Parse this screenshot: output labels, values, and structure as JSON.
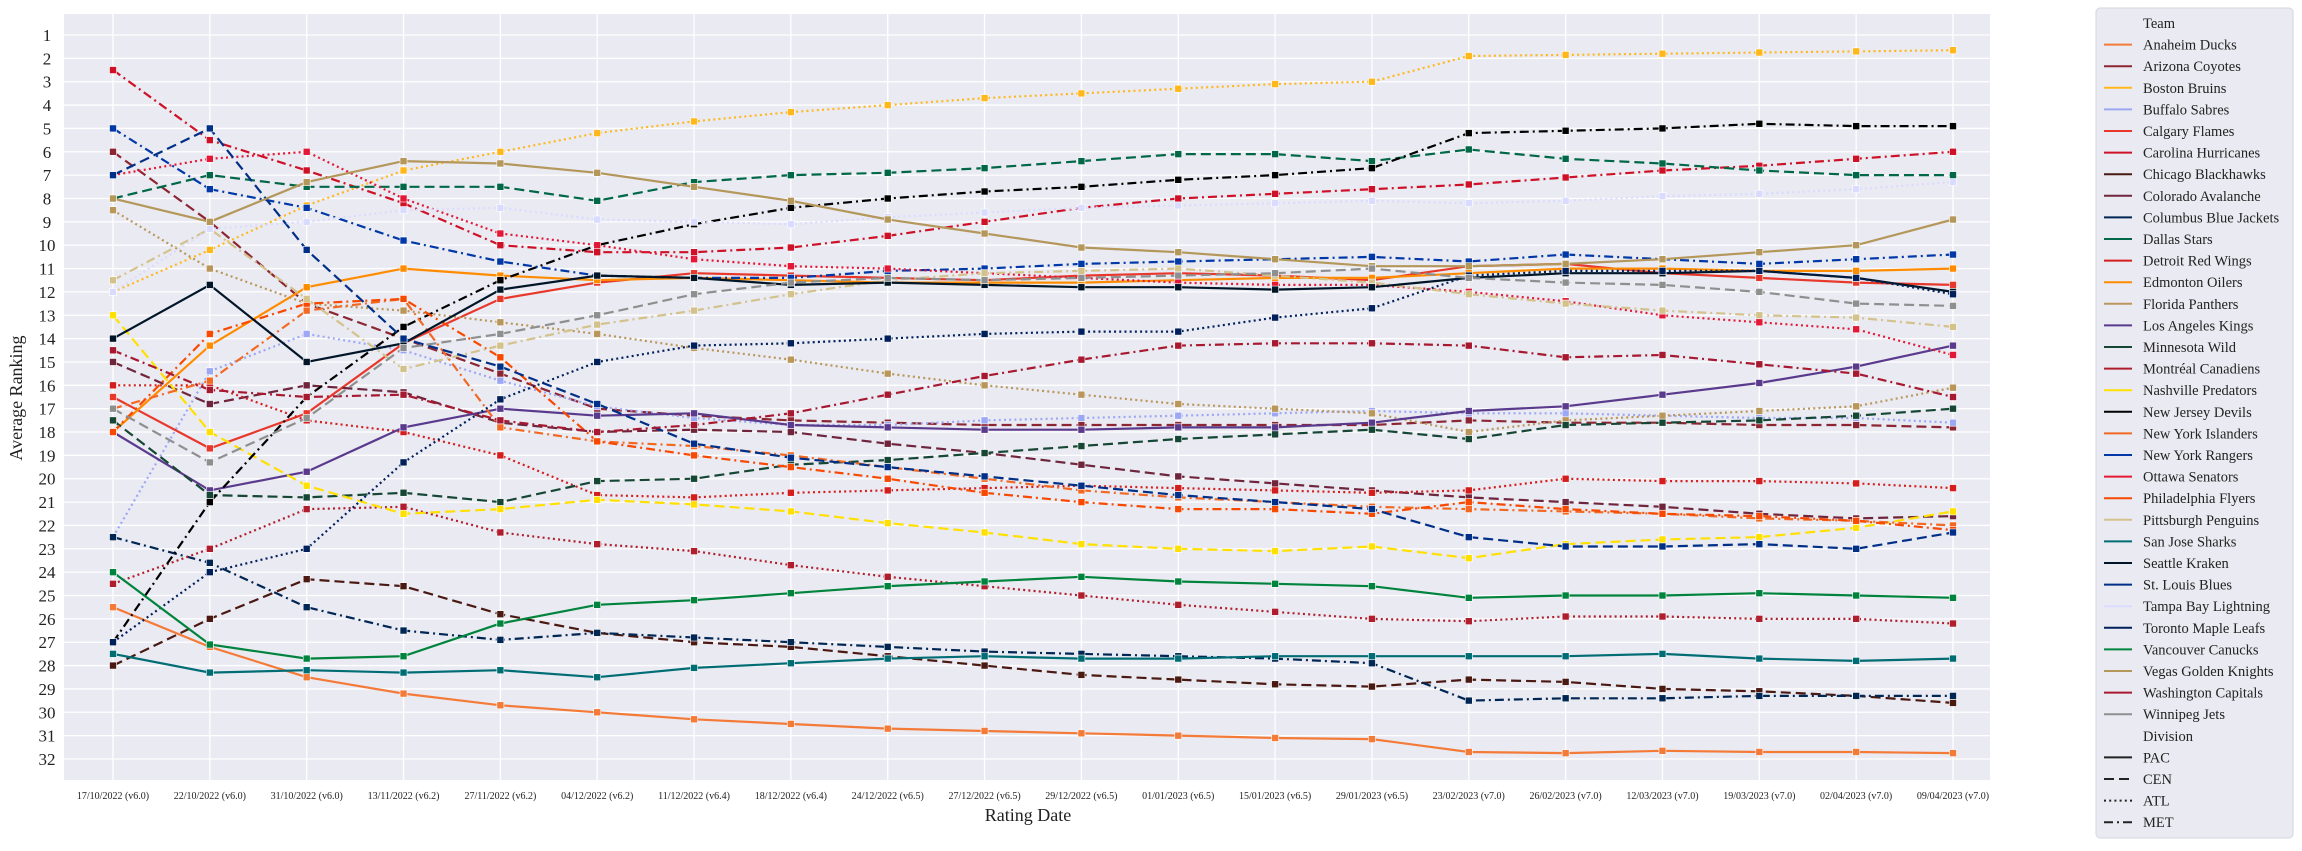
{
  "chart_data": {
    "type": "line",
    "title": "",
    "xlabel": "Rating Date",
    "ylabel": "Average Ranking",
    "x": [
      "17/10/2022 (v6.0)",
      "22/10/2022 (v6.0)",
      "31/10/2022 (v6.0)",
      "13/11/2022 (v6.2)",
      "27/11/2022 (v6.2)",
      "04/12/2022 (v6.2)",
      "11/12/2022 (v6.4)",
      "18/12/2022 (v6.4)",
      "24/12/2022 (v6.5)",
      "27/12/2022 (v6.5)",
      "29/12/2022 (v6.5)",
      "01/01/2023 (v6.5)",
      "15/01/2023 (v6.5)",
      "29/01/2023 (v6.5)",
      "23/02/2023 (v7.0)",
      "26/02/2023 (v7.0)",
      "12/03/2023 (v7.0)",
      "19/03/2023 (v7.0)",
      "02/04/2023 (v7.0)",
      "09/04/2023 (v7.0)"
    ],
    "yticks": [
      1,
      2,
      3,
      4,
      5,
      6,
      7,
      8,
      9,
      10,
      11,
      12,
      13,
      14,
      15,
      16,
      17,
      18,
      19,
      20,
      21,
      22,
      23,
      24,
      25,
      26,
      27,
      28,
      29,
      30,
      31,
      32
    ],
    "ylim": [
      32.9,
      0.1
    ],
    "y_inverted": true,
    "grid": true,
    "legend_placement": "outside-right",
    "legend_title_team": "Team",
    "legend_title_division": "Division",
    "divisions": [
      {
        "name": "PAC",
        "dash": "solid"
      },
      {
        "name": "CEN",
        "dash": "dashed"
      },
      {
        "name": "ATL",
        "dash": "dotted"
      },
      {
        "name": "MET",
        "dash": "dashdot"
      }
    ],
    "series": [
      {
        "name": "Anaheim Ducks",
        "color": "#F47A38",
        "division": "PAC",
        "values": [
          25.5,
          27.2,
          28.5,
          29.2,
          29.7,
          30.0,
          30.3,
          30.5,
          30.7,
          30.8,
          30.9,
          31.0,
          31.1,
          31.15,
          31.7,
          31.75,
          31.65,
          31.7,
          31.7,
          31.75
        ]
      },
      {
        "name": "Arizona Coyotes",
        "color": "#8C2633",
        "division": "CEN",
        "values": [
          6.0,
          9.0,
          12.5,
          14.0,
          15.5,
          17.0,
          17.3,
          17.5,
          17.6,
          17.7,
          17.7,
          17.7,
          17.7,
          17.7,
          17.5,
          17.6,
          17.6,
          17.7,
          17.7,
          17.8
        ]
      },
      {
        "name": "Boston Bruins",
        "color": "#FFB81C",
        "division": "ATL",
        "values": [
          12.0,
          10.2,
          8.3,
          6.8,
          6.0,
          5.2,
          4.7,
          4.3,
          4.0,
          3.7,
          3.5,
          3.3,
          3.1,
          3.0,
          1.9,
          1.85,
          1.8,
          1.75,
          1.7,
          1.65
        ]
      },
      {
        "name": "Buffalo Sabres",
        "color": "#9DA8F5",
        "division": "ATL",
        "values": [
          22.5,
          15.4,
          13.8,
          14.5,
          15.8,
          16.9,
          17.4,
          17.7,
          17.7,
          17.5,
          17.4,
          17.3,
          17.2,
          17.1,
          17.2,
          17.2,
          17.3,
          17.4,
          17.4,
          17.6
        ]
      },
      {
        "name": "Calgary Flames",
        "color": "#E8372B",
        "division": "PAC",
        "values": [
          16.5,
          18.7,
          17.2,
          14.2,
          12.3,
          11.6,
          11.2,
          11.3,
          11.4,
          11.5,
          11.3,
          11.2,
          11.3,
          11.5,
          10.9,
          10.8,
          11.2,
          11.4,
          11.6,
          11.7
        ]
      },
      {
        "name": "Carolina Hurricanes",
        "color": "#CE1126",
        "division": "MET",
        "values": [
          2.5,
          5.5,
          6.8,
          8.2,
          10.0,
          10.3,
          10.3,
          10.1,
          9.6,
          9.0,
          8.4,
          8.0,
          7.8,
          7.6,
          7.4,
          7.1,
          6.8,
          6.6,
          6.3,
          6.0
        ]
      },
      {
        "name": "Chicago Blackhawks",
        "color": "#4A1A12",
        "division": "CEN",
        "values": [
          28.0,
          26.0,
          24.3,
          24.6,
          25.8,
          26.6,
          27.0,
          27.2,
          27.6,
          28.0,
          28.4,
          28.6,
          28.8,
          28.9,
          28.6,
          28.7,
          29.0,
          29.1,
          29.3,
          29.6
        ]
      },
      {
        "name": "Colorado Avalanche",
        "color": "#6F263D",
        "division": "CEN",
        "values": [
          15.0,
          16.8,
          16.0,
          16.3,
          17.6,
          18.0,
          17.9,
          18.0,
          18.5,
          18.9,
          19.4,
          19.9,
          20.2,
          20.5,
          20.8,
          21.0,
          21.2,
          21.5,
          21.7,
          21.6
        ]
      },
      {
        "name": "Columbus Blue Jackets",
        "color": "#002654",
        "division": "MET",
        "values": [
          22.5,
          23.6,
          25.5,
          26.5,
          26.9,
          26.6,
          26.8,
          27.0,
          27.2,
          27.4,
          27.5,
          27.6,
          27.7,
          27.9,
          29.5,
          29.4,
          29.4,
          29.3,
          29.3,
          29.3
        ]
      },
      {
        "name": "Dallas Stars",
        "color": "#006847",
        "division": "CEN",
        "values": [
          8.0,
          7.0,
          7.5,
          7.5,
          7.5,
          8.1,
          7.3,
          7.0,
          6.9,
          6.7,
          6.4,
          6.1,
          6.1,
          6.4,
          5.9,
          6.3,
          6.5,
          6.8,
          7.0,
          7.0
        ]
      },
      {
        "name": "Detroit Red Wings",
        "color": "#D41E1E",
        "division": "ATL",
        "values": [
          16.0,
          16.0,
          17.5,
          18.0,
          19.0,
          20.7,
          20.8,
          20.6,
          20.5,
          20.4,
          20.3,
          20.4,
          20.5,
          20.6,
          20.5,
          20.0,
          20.1,
          20.1,
          20.2,
          20.4
        ]
      },
      {
        "name": "Edmonton Oilers",
        "color": "#FF8C00",
        "division": "PAC",
        "values": [
          18.0,
          14.3,
          11.8,
          11.0,
          11.3,
          11.5,
          11.4,
          11.5,
          11.6,
          11.6,
          11.6,
          11.5,
          11.4,
          11.4,
          11.2,
          11.0,
          11.0,
          11.1,
          11.1,
          11.0
        ]
      },
      {
        "name": "Florida Panthers",
        "color": "#B9975B",
        "division": "ATL",
        "values": [
          8.5,
          11.0,
          12.5,
          12.8,
          13.3,
          13.8,
          14.4,
          14.9,
          15.5,
          16.0,
          16.4,
          16.8,
          17.0,
          17.2,
          18.0,
          17.5,
          17.3,
          17.1,
          16.9,
          16.1
        ]
      },
      {
        "name": "Los Angeles Kings",
        "color": "#5A3A8C",
        "division": "PAC",
        "values": [
          18.0,
          20.5,
          19.7,
          17.8,
          17.0,
          17.3,
          17.2,
          17.7,
          17.8,
          17.9,
          17.9,
          17.8,
          17.8,
          17.6,
          17.1,
          16.9,
          16.4,
          15.9,
          15.2,
          14.3
        ]
      },
      {
        "name": "Minnesota Wild",
        "color": "#154734",
        "division": "CEN",
        "values": [
          17.5,
          20.7,
          20.8,
          20.6,
          21.0,
          20.1,
          20.0,
          19.4,
          19.2,
          18.9,
          18.6,
          18.3,
          18.1,
          17.9,
          18.3,
          17.7,
          17.6,
          17.5,
          17.3,
          17.0
        ]
      },
      {
        "name": "Montréal Canadiens",
        "color": "#AF1E2D",
        "division": "ATL",
        "values": [
          24.5,
          23.0,
          21.3,
          21.2,
          22.3,
          22.8,
          23.1,
          23.7,
          24.2,
          24.6,
          25.0,
          25.4,
          25.7,
          26.0,
          26.1,
          25.9,
          25.9,
          26.0,
          26.0,
          26.2
        ]
      },
      {
        "name": "Nashville Predators",
        "color": "#FFE000",
        "division": "CEN",
        "values": [
          13.0,
          18.0,
          20.3,
          21.5,
          21.3,
          20.9,
          21.1,
          21.4,
          21.9,
          22.3,
          22.8,
          23.0,
          23.1,
          22.9,
          23.4,
          22.8,
          22.6,
          22.5,
          22.1,
          21.4
        ]
      },
      {
        "name": "New Jersey Devils",
        "color": "#000000",
        "division": "MET",
        "values": [
          27.0,
          21.0,
          16.5,
          13.5,
          11.5,
          10.0,
          9.1,
          8.4,
          8.0,
          7.7,
          7.5,
          7.2,
          7.0,
          6.7,
          5.2,
          5.1,
          5.0,
          4.8,
          4.9,
          4.9
        ]
      },
      {
        "name": "New York Islanders",
        "color": "#F26924",
        "division": "MET",
        "values": [
          17.0,
          15.8,
          12.8,
          12.3,
          17.8,
          18.4,
          18.6,
          19.0,
          19.5,
          20.0,
          20.5,
          20.8,
          21.0,
          21.2,
          21.3,
          21.4,
          21.5,
          21.7,
          21.8,
          22.0
        ]
      },
      {
        "name": "New York Rangers",
        "color": "#0038A8",
        "division": "MET",
        "values": [
          5.0,
          7.6,
          8.4,
          9.8,
          10.7,
          11.3,
          11.4,
          11.4,
          11.1,
          11.0,
          10.8,
          10.7,
          10.6,
          10.5,
          10.7,
          10.4,
          10.6,
          10.8,
          10.6,
          10.4
        ]
      },
      {
        "name": "Ottawa Senators",
        "color": "#E31837",
        "division": "ATL",
        "values": [
          7.0,
          6.3,
          6.0,
          8.0,
          9.5,
          10.0,
          10.6,
          10.9,
          11.0,
          11.2,
          11.4,
          11.6,
          11.7,
          11.7,
          12.0,
          12.4,
          13.0,
          13.3,
          13.6,
          14.7
        ]
      },
      {
        "name": "Philadelphia Flyers",
        "color": "#F74902",
        "division": "MET",
        "values": [
          18.0,
          13.8,
          12.5,
          12.3,
          14.8,
          18.4,
          19.0,
          19.5,
          20.0,
          20.6,
          21.0,
          21.3,
          21.3,
          21.5,
          21.0,
          21.3,
          21.5,
          21.6,
          21.8,
          22.2
        ]
      },
      {
        "name": "Pittsburgh Penguins",
        "color": "#D3C28C",
        "division": "MET",
        "values": [
          11.5,
          9.3,
          12.3,
          15.3,
          14.3,
          13.4,
          12.8,
          12.1,
          11.5,
          11.2,
          11.1,
          11.0,
          11.3,
          11.6,
          12.1,
          12.5,
          12.8,
          13.0,
          13.1,
          13.5
        ]
      },
      {
        "name": "San Jose Sharks",
        "color": "#006D75",
        "division": "PAC",
        "values": [
          27.5,
          28.3,
          28.2,
          28.3,
          28.2,
          28.5,
          28.1,
          27.9,
          27.7,
          27.6,
          27.7,
          27.7,
          27.6,
          27.6,
          27.6,
          27.6,
          27.5,
          27.7,
          27.8,
          27.7
        ]
      },
      {
        "name": "Seattle Kraken",
        "color": "#001628",
        "division": "PAC",
        "values": [
          14.0,
          11.7,
          15.0,
          14.2,
          11.9,
          11.3,
          11.4,
          11.7,
          11.6,
          11.7,
          11.8,
          11.8,
          11.9,
          11.8,
          11.4,
          11.2,
          11.2,
          11.1,
          11.4,
          12.0
        ]
      },
      {
        "name": "St. Louis Blues",
        "color": "#002F87",
        "division": "CEN",
        "values": [
          7.0,
          5.0,
          10.2,
          14.0,
          15.2,
          16.8,
          18.5,
          19.1,
          19.5,
          19.9,
          20.3,
          20.7,
          21.0,
          21.3,
          22.5,
          22.9,
          22.9,
          22.8,
          23.0,
          22.3
        ]
      },
      {
        "name": "Tampa Bay Lightning",
        "color": "#D9DBFF",
        "division": "ATL",
        "values": [
          12.0,
          9.3,
          9.0,
          8.5,
          8.4,
          8.9,
          9.0,
          9.1,
          8.8,
          8.6,
          8.4,
          8.3,
          8.2,
          8.1,
          8.2,
          8.1,
          7.9,
          7.8,
          7.6,
          7.3
        ]
      },
      {
        "name": "Toronto Maple Leafs",
        "color": "#00205B",
        "division": "ATL",
        "values": [
          27.0,
          24.0,
          23.0,
          19.3,
          16.6,
          15.0,
          14.3,
          14.2,
          14.0,
          13.8,
          13.7,
          13.7,
          13.1,
          12.7,
          11.3,
          11.1,
          11.1,
          11.1,
          11.4,
          12.1
        ]
      },
      {
        "name": "Vancouver Canucks",
        "color": "#00843D",
        "division": "PAC",
        "values": [
          24.0,
          27.1,
          27.7,
          27.6,
          26.2,
          25.4,
          25.2,
          24.9,
          24.6,
          24.4,
          24.2,
          24.4,
          24.5,
          24.6,
          25.1,
          25.0,
          25.0,
          24.9,
          25.0,
          25.1
        ]
      },
      {
        "name": "Vegas Golden Knights",
        "color": "#B4975A",
        "division": "PAC",
        "values": [
          8.0,
          9.0,
          7.3,
          6.4,
          6.5,
          6.9,
          7.5,
          8.1,
          8.9,
          9.5,
          10.1,
          10.3,
          10.6,
          10.9,
          10.9,
          10.8,
          10.6,
          10.3,
          10.0,
          8.9
        ]
      },
      {
        "name": "Washington Capitals",
        "color": "#A71930",
        "division": "MET",
        "values": [
          14.5,
          16.2,
          16.5,
          16.4,
          17.5,
          18.0,
          17.7,
          17.2,
          16.4,
          15.6,
          14.9,
          14.3,
          14.2,
          14.2,
          14.3,
          14.8,
          14.7,
          15.1,
          15.5,
          16.5
        ]
      },
      {
        "name": "Winnipeg Jets",
        "color": "#8E9090",
        "division": "CEN",
        "values": [
          17.0,
          19.3,
          17.4,
          14.4,
          13.8,
          13.0,
          12.1,
          11.6,
          11.4,
          11.5,
          11.4,
          11.3,
          11.2,
          11.0,
          11.4,
          11.6,
          11.7,
          12.0,
          12.5,
          12.6
        ]
      }
    ]
  }
}
